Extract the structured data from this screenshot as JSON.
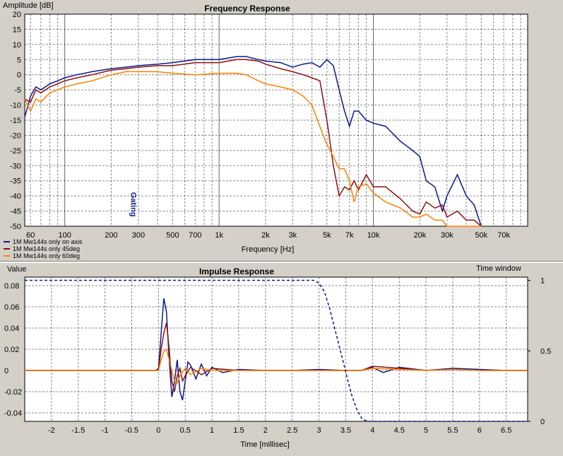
{
  "chart_data": [
    {
      "type": "line",
      "title": "Frequency Response",
      "ylabel": "Amplitude [dB]",
      "xlabel": "Frequency [Hz]",
      "xscale": "log",
      "xlim": [
        55,
        100000
      ],
      "ylim": [
        -50,
        20
      ],
      "grid": true,
      "legend_position": "bottom-left",
      "yticks": [
        20,
        15,
        10,
        5,
        0,
        -5,
        -10,
        -15,
        -20,
        -25,
        -30,
        -35,
        -40,
        -45,
        -50
      ],
      "xtick_labels": [
        {
          "v": 60,
          "t": "60"
        },
        {
          "v": 100,
          "t": "100"
        },
        {
          "v": 200,
          "t": "200"
        },
        {
          "v": 300,
          "t": "300"
        },
        {
          "v": 500,
          "t": "500"
        },
        {
          "v": 700,
          "t": "700"
        },
        {
          "v": 1000,
          "t": "1k"
        },
        {
          "v": 2000,
          "t": "2k"
        },
        {
          "v": 3000,
          "t": "3k"
        },
        {
          "v": 5000,
          "t": "5k"
        },
        {
          "v": 7000,
          "t": "7k"
        },
        {
          "v": 10000,
          "t": "10k"
        },
        {
          "v": 20000,
          "t": "20k"
        },
        {
          "v": 30000,
          "t": "30k"
        },
        {
          "v": 50000,
          "t": "50k"
        },
        {
          "v": 70000,
          "t": "70k"
        }
      ],
      "annotation": {
        "text": "Gating",
        "x": 280,
        "y": -42
      },
      "series": [
        {
          "name": "1M Mw144s only on axis",
          "color": "#0a1a8c",
          "x": [
            55,
            60,
            65,
            70,
            80,
            90,
            100,
            120,
            150,
            200,
            250,
            300,
            400,
            500,
            700,
            1000,
            1300,
            1500,
            1800,
            2000,
            2500,
            3000,
            3500,
            4000,
            4500,
            5000,
            5500,
            6000,
            6500,
            7000,
            7500,
            8000,
            9000,
            10000,
            12000,
            15000,
            18000,
            20000,
            22000,
            25000,
            28000,
            30000,
            35000,
            40000,
            45000,
            50000
          ],
          "y": [
            -14,
            -7,
            -4,
            -5,
            -3,
            -2,
            -1,
            0,
            1,
            2,
            2.5,
            3,
            3.5,
            4,
            5,
            5,
            6,
            6,
            5,
            4.5,
            4,
            2.5,
            3.5,
            4,
            2.5,
            5,
            3,
            -5,
            -12,
            -17,
            -12,
            -12,
            -15,
            -16,
            -17,
            -22,
            -25,
            -27,
            -35,
            -37,
            -45,
            -40,
            -33,
            -40,
            -43,
            -50
          ]
        },
        {
          "name": "1M Mw144s only 45deg",
          "color": "#8b1010",
          "x": [
            55,
            60,
            65,
            70,
            80,
            90,
            100,
            120,
            150,
            200,
            250,
            300,
            400,
            500,
            700,
            1000,
            1300,
            1500,
            1800,
            2000,
            2500,
            3000,
            3500,
            4000,
            4500,
            5000,
            5500,
            6000,
            6500,
            7000,
            7500,
            8000,
            9000,
            10000,
            12000,
            15000,
            18000,
            20000,
            22000,
            25000,
            28000,
            30000,
            35000,
            40000,
            45000,
            50000
          ],
          "y": [
            -8,
            -9,
            -5,
            -6,
            -4,
            -3,
            -2,
            -1,
            0,
            1.5,
            2,
            2.5,
            3,
            3,
            4,
            4,
            5,
            5,
            4.5,
            3.5,
            2,
            1,
            0,
            -1,
            -2,
            -15,
            -30,
            -40,
            -37,
            -38,
            -35,
            -38,
            -33,
            -37,
            -37,
            -41,
            -45,
            -46,
            -42,
            -44,
            -43,
            -47,
            -45,
            -48,
            -48,
            -50
          ]
        },
        {
          "name": "1M Mw144s only 60deg",
          "color": "#ff8000",
          "x": [
            55,
            60,
            65,
            70,
            80,
            90,
            100,
            120,
            150,
            200,
            250,
            300,
            400,
            500,
            700,
            1000,
            1300,
            1500,
            1800,
            2000,
            2500,
            3000,
            3500,
            4000,
            4500,
            5000,
            5500,
            6000,
            6500,
            7000,
            7500,
            8000,
            9000,
            10000,
            12000,
            15000,
            18000,
            20000,
            22000,
            25000,
            28000,
            30000,
            35000,
            40000,
            45000,
            50000
          ],
          "y": [
            -8,
            -12,
            -8,
            -9,
            -6,
            -5,
            -4,
            -3,
            -2,
            0,
            1,
            1,
            1,
            0.5,
            0,
            0.5,
            0.5,
            0,
            -2,
            -3,
            -4,
            -5,
            -7,
            -10,
            -17,
            -23,
            -27,
            -31,
            -31,
            -35,
            -42,
            -37,
            -36,
            -39,
            -42,
            -44,
            -47,
            -47,
            -46,
            -48,
            -48,
            -50,
            -50,
            -50,
            -50,
            -50
          ]
        }
      ]
    },
    {
      "type": "line",
      "title": "Impulse Response",
      "ylabel": "Value",
      "xlabel": "Time [millisec]",
      "y2label": "Time window",
      "xlim": [
        -2.5,
        6.9
      ],
      "ylim": [
        -0.048,
        0.088
      ],
      "y2lim": [
        0,
        1
      ],
      "grid": true,
      "yticks": [
        0.08,
        0.06,
        0.04,
        0.02,
        0,
        -0.02,
        -0.04
      ],
      "ytick_labels": [
        "0.08",
        "0.06",
        "0.04",
        "0.02",
        "0",
        "-0.02",
        "-0.04"
      ],
      "y2ticks": [
        1,
        0.5,
        0
      ],
      "y2tick_labels": [
        "1",
        "0.5",
        "0"
      ],
      "xticks": [
        -2,
        -1.5,
        -1,
        -0.5,
        0,
        0.5,
        1,
        1.5,
        2,
        2.5,
        3,
        3.5,
        4,
        4.5,
        5,
        5.5,
        6,
        6.5
      ],
      "xtick_labels": [
        "-2",
        "-1.5",
        "-1",
        "-0.5",
        "0",
        "0.5",
        "1",
        "1.5",
        "2",
        "2.5",
        "3",
        "3.5",
        "4",
        "4.5",
        "5",
        "5.5",
        "6",
        "6.5"
      ],
      "series": [
        {
          "name": "1M Mw144s only on axis",
          "color": "#0a1a8c",
          "x": [
            -2.5,
            -0.05,
            0,
            0.05,
            0.1,
            0.15,
            0.2,
            0.25,
            0.3,
            0.35,
            0.4,
            0.45,
            0.5,
            0.55,
            0.6,
            0.7,
            0.8,
            0.9,
            1.0,
            1.2,
            1.5,
            2,
            2.5,
            3,
            3.5,
            3.8,
            4,
            4.2,
            4.5,
            5,
            5.5,
            6,
            6.5,
            6.9
          ],
          "x2_note": "",
          "y": [
            0,
            0,
            0.002,
            0.035,
            0.068,
            0.055,
            0.01,
            -0.025,
            -0.01,
            0.01,
            -0.02,
            -0.028,
            -0.01,
            0.008,
            0.005,
            -0.008,
            0.006,
            -0.005,
            0.003,
            -0.002,
            0.001,
            0,
            0,
            0.001,
            0,
            0,
            0.003,
            -0.002,
            0.003,
            0,
            0.002,
            0.001,
            0,
            0
          ]
        },
        {
          "name": "1M Mw144s only 45deg",
          "color": "#8b1010",
          "x": [
            -2.5,
            -0.05,
            0,
            0.05,
            0.1,
            0.15,
            0.2,
            0.25,
            0.3,
            0.35,
            0.4,
            0.45,
            0.5,
            0.6,
            0.8,
            1.0,
            1.5,
            2,
            3,
            3.8,
            4,
            4.5,
            5,
            5.5,
            6,
            6.5,
            6.9
          ],
          "y": [
            0,
            0,
            0.001,
            0.02,
            0.035,
            0.045,
            0.02,
            -0.01,
            -0.02,
            -0.005,
            0.002,
            -0.01,
            -0.005,
            0.003,
            -0.004,
            0.002,
            0,
            0,
            0,
            0,
            0.004,
            0.002,
            0,
            0.001,
            0,
            0,
            0
          ]
        },
        {
          "name": "1M Mw144s only 60deg",
          "color": "#ff8000",
          "x": [
            -2.5,
            -0.05,
            0,
            0.05,
            0.1,
            0.15,
            0.2,
            0.25,
            0.3,
            0.35,
            0.4,
            0.5,
            0.6,
            0.8,
            1.0,
            1.5,
            2,
            3,
            3.8,
            4,
            4.5,
            5,
            5.5,
            6,
            6.5,
            6.9
          ],
          "y": [
            0,
            0,
            0,
            0.01,
            0.018,
            0.02,
            0.01,
            0,
            -0.01,
            -0.012,
            -0.005,
            0.002,
            -0.004,
            0.002,
            0,
            0,
            0,
            0,
            0,
            0.002,
            0.001,
            0,
            0.001,
            0,
            0,
            0
          ]
        },
        {
          "name": "Time window",
          "color": "#0a1a8c",
          "dashed": true,
          "axis": "y2",
          "x": [
            -2.5,
            2.9,
            3.0,
            3.1,
            3.2,
            3.3,
            3.4,
            3.5,
            3.6,
            3.7,
            3.8,
            3.9,
            6.9
          ],
          "y": [
            1,
            1,
            0.98,
            0.92,
            0.8,
            0.65,
            0.5,
            0.35,
            0.2,
            0.09,
            0.02,
            0,
            0
          ]
        }
      ]
    }
  ]
}
